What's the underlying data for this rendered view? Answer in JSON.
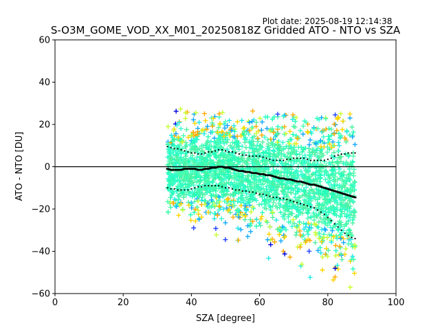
{
  "chart_data": {
    "type": "scatter",
    "title": "S-O3M_GOME_VOD_XX_M01_20250818Z Gridded ATO - NTO vs SZA",
    "plot_date": "Plot date: 2025-08-19 12:14:38",
    "xlabel": "SZA [degree]",
    "ylabel": "ATO - NTO [DU]",
    "xlim": [
      0,
      100
    ],
    "ylim": [
      -60,
      60
    ],
    "xticks": [
      0,
      20,
      40,
      60,
      80,
      100
    ],
    "yticks": [
      -60,
      -40,
      -20,
      0,
      20,
      40,
      60
    ],
    "xtick_labels": [
      "0",
      "20",
      "40",
      "60",
      "80",
      "100"
    ],
    "ytick_labels": [
      "−60",
      "−40",
      "−20",
      "0",
      "20",
      "40",
      "60"
    ],
    "grid": false,
    "legend": "none",
    "reference_line": {
      "y": 0,
      "color": "#000000"
    },
    "marker": "+",
    "point_colors": [
      "#44ffb0",
      "#30ffd0",
      "#50f0a0",
      "#20e8e8",
      "#10a8ff",
      "#ffd500",
      "#c8ff30",
      "#ffaa00",
      "#0000e0",
      "#2040ff",
      "#20ffb8"
    ],
    "scatter_extent": {
      "x": [
        33,
        88
      ],
      "y_low_at_start": -35,
      "y_high_at_start": 28,
      "y_low_at_end": -60,
      "y_high_at_end": 25
    },
    "series": [
      {
        "role": "median",
        "x": [
          33,
          34,
          35,
          36,
          37,
          38,
          39,
          40,
          41,
          42,
          43,
          44,
          45,
          46,
          47,
          48,
          49,
          50,
          51,
          52,
          53,
          54,
          55,
          56,
          57,
          58,
          59,
          60,
          61,
          62,
          63,
          64,
          65,
          66,
          67,
          68,
          69,
          70,
          71,
          72,
          73,
          74,
          75,
          76,
          77,
          78,
          79,
          80,
          81,
          82,
          83,
          84,
          85,
          86,
          87,
          88
        ],
        "y": [
          -1,
          -1.5,
          -1.5,
          -1.5,
          -1.5,
          -1,
          -1,
          -1,
          -1,
          -1.5,
          -1.5,
          -1,
          -1,
          -0.5,
          -0.5,
          0,
          0,
          -0.5,
          -0.5,
          -1,
          -1.5,
          -2,
          -2,
          -2.5,
          -2.5,
          -3,
          -3,
          -3.5,
          -3.5,
          -4,
          -4,
          -4.5,
          -5,
          -5.5,
          -5.5,
          -6,
          -6,
          -6.5,
          -7,
          -7,
          -7.5,
          -8,
          -8.5,
          -8.5,
          -9,
          -9.5,
          -10,
          -10.5,
          -11,
          -11.5,
          -12,
          -12.5,
          -13,
          -13.5,
          -14,
          -14.5
        ]
      },
      {
        "role": "upper",
        "x": [
          33,
          34,
          35,
          36,
          37,
          38,
          39,
          40,
          41,
          42,
          43,
          44,
          45,
          46,
          47,
          48,
          49,
          50,
          51,
          52,
          53,
          54,
          55,
          56,
          57,
          58,
          59,
          60,
          61,
          62,
          63,
          64,
          65,
          66,
          67,
          68,
          69,
          70,
          71,
          72,
          73,
          74,
          75,
          76,
          77,
          78,
          79,
          80,
          81,
          82,
          83,
          84,
          85,
          86,
          87,
          88
        ],
        "y": [
          9.5,
          9,
          8.5,
          8.5,
          8,
          7.5,
          7,
          6.5,
          6.5,
          6,
          6,
          6.5,
          7,
          7,
          7.5,
          8,
          8,
          7.5,
          7,
          7,
          6.5,
          6,
          5.5,
          5.5,
          5,
          5,
          5,
          5,
          4.5,
          4,
          3.5,
          3,
          3,
          3,
          3,
          3.5,
          3.5,
          4,
          4,
          4,
          4,
          3.5,
          3,
          3,
          3,
          3,
          3,
          3.5,
          4,
          5,
          5.5,
          6,
          6,
          6.5,
          6.5,
          6.5
        ]
      },
      {
        "role": "lower",
        "x": [
          33,
          34,
          35,
          36,
          37,
          38,
          39,
          40,
          41,
          42,
          43,
          44,
          45,
          46,
          47,
          48,
          49,
          50,
          51,
          52,
          53,
          54,
          55,
          56,
          57,
          58,
          59,
          60,
          61,
          62,
          63,
          64,
          65,
          66,
          67,
          68,
          69,
          70,
          71,
          72,
          73,
          74,
          75,
          76,
          77,
          78,
          79,
          80,
          81,
          82,
          83,
          84,
          85,
          86,
          87,
          88
        ],
        "y": [
          -10,
          -10.5,
          -10.5,
          -11,
          -11,
          -11,
          -11,
          -10.5,
          -10,
          -9.5,
          -9.5,
          -9,
          -9,
          -9,
          -9,
          -9,
          -9.5,
          -10,
          -10,
          -10.5,
          -11,
          -11,
          -11.5,
          -11.5,
          -12,
          -12,
          -12.5,
          -13,
          -13,
          -13.5,
          -14,
          -14.5,
          -14.5,
          -15,
          -15,
          -15.5,
          -16,
          -16.5,
          -17,
          -17.5,
          -18,
          -18.5,
          -19,
          -19.5,
          -20.5,
          -21.5,
          -22.5,
          -24,
          -25.5,
          -27,
          -28.5,
          -30,
          -31.5,
          -32.5,
          -33.5,
          -34
        ]
      }
    ]
  }
}
